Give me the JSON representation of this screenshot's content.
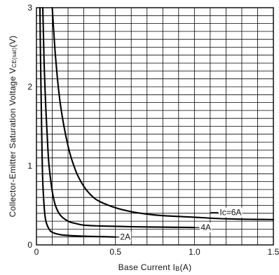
{
  "chart_data": {
    "type": "line",
    "xlabel": {
      "main": "Base Current I",
      "sub": "B",
      "tail": "(A)"
    },
    "ylabel": {
      "main": "Collector-Emitter Saturation Voltage V",
      "sub": "CE(sat)",
      "tail": "(V)"
    },
    "xlim": [
      0,
      1.5
    ],
    "ylim": [
      0,
      3
    ],
    "x_tick_labels": [
      "0",
      "0.5",
      "1.0",
      "1.5"
    ],
    "y_tick_labels": [
      "0",
      "1",
      "2",
      "3"
    ],
    "grid": true,
    "series": [
      {
        "name": "2A",
        "x": [
          0.022,
          0.025,
          0.03,
          0.035,
          0.04,
          0.05,
          0.06,
          0.08,
          0.1,
          0.15,
          0.2,
          0.3,
          0.4,
          0.5
        ],
        "y": [
          3.0,
          2.5,
          1.8,
          1.2,
          0.8,
          0.45,
          0.3,
          0.2,
          0.16,
          0.13,
          0.12,
          0.11,
          0.105,
          0.1
        ]
      },
      {
        "name": "4A",
        "x": [
          0.04,
          0.045,
          0.05,
          0.06,
          0.07,
          0.08,
          0.1,
          0.12,
          0.15,
          0.2,
          0.25,
          0.3,
          0.4,
          0.5,
          0.6,
          0.8,
          1.0
        ],
        "y": [
          3.0,
          2.6,
          2.2,
          1.7,
          1.3,
          1.0,
          0.68,
          0.5,
          0.38,
          0.3,
          0.27,
          0.25,
          0.24,
          0.235,
          0.23,
          0.225,
          0.22
        ]
      },
      {
        "name": "Ic=6A",
        "x": [
          0.1,
          0.12,
          0.15,
          0.2,
          0.25,
          0.3,
          0.35,
          0.4,
          0.5,
          0.6,
          0.7,
          0.8,
          0.9,
          1.0,
          1.2,
          1.5
        ],
        "y": [
          3.0,
          2.4,
          1.8,
          1.25,
          0.93,
          0.74,
          0.62,
          0.55,
          0.47,
          0.42,
          0.39,
          0.37,
          0.36,
          0.35,
          0.33,
          0.32
        ]
      }
    ],
    "curve_labels": [
      {
        "series": "2A",
        "text": "2A",
        "x": 0.53,
        "y": 0.1,
        "leader_from": 0.5
      },
      {
        "series": "4A",
        "text": "4A",
        "x": 1.04,
        "y": 0.22,
        "leader_from": 1.0
      },
      {
        "series": "Ic=6A",
        "text": "Ic=6A",
        "x": 1.16,
        "y": 0.41,
        "leader_from": 1.1
      }
    ]
  }
}
